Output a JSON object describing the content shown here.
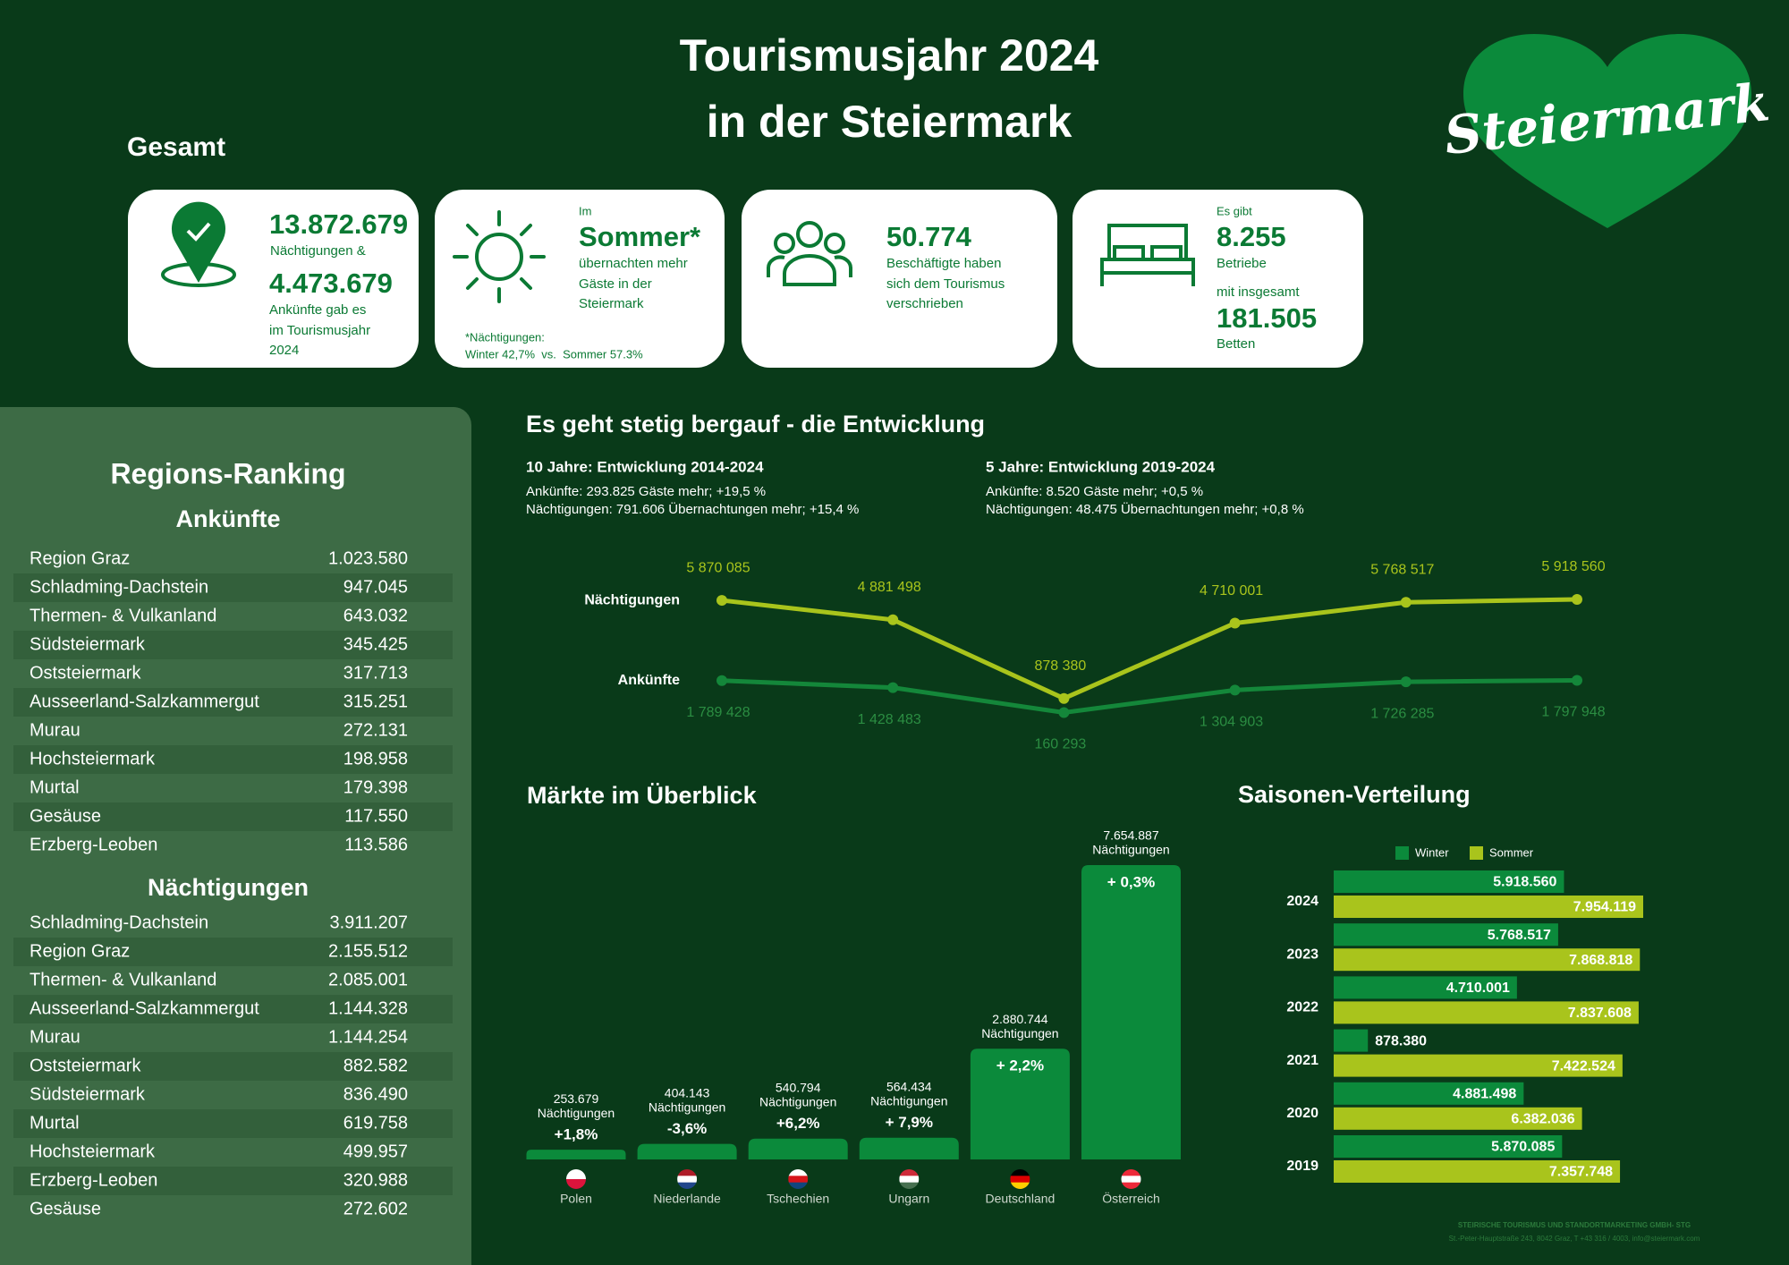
{
  "header": {
    "title_lines": [
      "Tourismusjahr 2024",
      "in der Steiermark"
    ],
    "logo": "Steiermark",
    "section": "Gesamt"
  },
  "cards": [
    {
      "overnights": "13.872.679",
      "overnights_label": "Nächtigungen &",
      "arrivals": "4.473.679",
      "arrivals_label": [
        "Ankünfte gab es",
        "im Tourismusjahr",
        "2024"
      ]
    },
    {
      "intro": "Im",
      "highlight": "Sommer*",
      "text": [
        "übernachten mehr",
        "Gäste in der",
        "Steiermark"
      ],
      "footnote": [
        "*Nächtigungen:",
        "Winter 42,7%  vs.  Sommer 57.3%"
      ]
    },
    {
      "value": "50.774",
      "text": [
        "Beschäftigte haben",
        "sich dem Tourismus",
        "verschrieben"
      ]
    },
    {
      "intro": "Es gibt",
      "businesses": "8.255",
      "businesses_label": "Betriebe",
      "intro2": "mit insgesamt",
      "beds": "181.505",
      "beds_label": "Betten"
    }
  ],
  "ranking": {
    "title": "Regions-Ranking",
    "arrivals": {
      "heading": "Ankünfte",
      "rows": [
        [
          "Region Graz",
          "1.023.580"
        ],
        [
          "Schladming-Dachstein",
          "947.045"
        ],
        [
          "Thermen- & Vulkanland",
          "643.032"
        ],
        [
          "Südsteiermark",
          "345.425"
        ],
        [
          "Oststeiermark",
          "317.713"
        ],
        [
          "Ausseerland-Salzkammergut",
          "315.251"
        ],
        [
          "Murau",
          "272.131"
        ],
        [
          "Hochsteiermark",
          "198.958"
        ],
        [
          "Murtal",
          "179.398"
        ],
        [
          "Gesäuse",
          "117.550"
        ],
        [
          "Erzberg-Leoben",
          "113.586"
        ]
      ]
    },
    "overnights": {
      "heading": "Nächtigungen",
      "rows": [
        [
          "Schladming-Dachstein",
          "3.911.207"
        ],
        [
          "Region Graz",
          "2.155.512"
        ],
        [
          "Thermen- & Vulkanland",
          "2.085.001"
        ],
        [
          "Ausseerland-Salzkammergut",
          "1.144.328"
        ],
        [
          "Murau",
          "1.144.254"
        ],
        [
          "Oststeiermark",
          "882.582"
        ],
        [
          "Südsteiermark",
          "836.490"
        ],
        [
          "Murtal",
          "619.758"
        ],
        [
          "Hochsteiermark",
          "499.957"
        ],
        [
          "Erzberg-Leoben",
          "320.988"
        ],
        [
          "Gesäuse",
          "272.602"
        ]
      ]
    }
  },
  "development": {
    "title": "Es geht stetig bergauf - die Entwicklung",
    "periods": [
      {
        "heading": "10 Jahre: Entwicklung 2014-2024",
        "lines": [
          "Ankünfte: 293.825 Gäste mehr; +19,5 %",
          "Nächtigungen: 791.606 Übernachtungen mehr; +15,4 %"
        ]
      },
      {
        "heading": "5 Jahre: Entwicklung 2019-2024",
        "lines": [
          "Ankünfte: 8.520 Gäste mehr; +0,5 %",
          "Nächtigungen: 48.475 Übernachtungen mehr; +0,8 %"
        ]
      }
    ]
  },
  "chart_data": [
    {
      "type": "line",
      "series": [
        {
          "name": "Nächtigungen",
          "color": "#a9c41c",
          "values": [
            5870085,
            4881498,
            878380,
            4710001,
            5768517,
            5918560
          ],
          "value_labels": [
            "5 870 085",
            "4 881 498",
            "878 380",
            "4 710 001",
            "5 768 517",
            "5 918 560"
          ]
        },
        {
          "name": "Ankünfte",
          "color": "#14873a",
          "values": [
            1789428,
            1428483,
            160293,
            1304903,
            1726285,
            1797948
          ],
          "value_labels": [
            "1 789 428",
            "1 428 483",
            "160 293",
            "1 304 903",
            "1 726 285",
            "1 797 948"
          ]
        }
      ]
    },
    {
      "type": "bar",
      "title": "Märkte im Überblick",
      "categories": [
        "Polen",
        "Niederlande",
        "Tschechien",
        "Ungarn",
        "Deutschland",
        "Österreich"
      ],
      "values": [
        253679,
        404143,
        540794,
        564434,
        2880744,
        7654887
      ],
      "value_labels": [
        "253.679",
        "404.143",
        "540.794",
        "564.434",
        "2.880.744",
        "7.654.887"
      ],
      "unit_label": "Nächtigungen",
      "changes": [
        1.8,
        -3.6,
        6.2,
        7.9,
        2.2,
        0.3
      ],
      "change_labels": [
        "+1,8%",
        "-3,6%",
        "+6,2%",
        "+ 7,9%",
        "+ 2,2%",
        "+ 0,3%"
      ],
      "color": "#0b8a3b"
    },
    {
      "type": "hbar",
      "title": "Saisonen-Verteilung",
      "categories": [
        "2024",
        "2023",
        "2022",
        "2021",
        "2020",
        "2019"
      ],
      "series": [
        {
          "name": "Winter",
          "color": "#0b8a3b",
          "values": [
            5918560,
            5768517,
            4710001,
            878380,
            4881498,
            5870085
          ],
          "value_labels": [
            "5.918.560",
            "5.768.517",
            "4.710.001",
            "878.380",
            "4.881.498",
            "5.870.085"
          ]
        },
        {
          "name": "Sommer",
          "color": "#a9c41c",
          "values": [
            7954119,
            7868818,
            7837608,
            7422524,
            6382036,
            7357748
          ],
          "value_labels": [
            "7.954.119",
            "7.868.818",
            "7.837.608",
            "7.422.524",
            "6.382.036",
            "7.357.748"
          ]
        }
      ]
    }
  ],
  "footer": [
    "STEIRISCHE TOURISMUS UND STANDORTMARKETING GMBH- STG",
    "St.-Peter-Hauptstraße 243, 8042 Graz, T +43 316 / 4003, info@steiermark.com"
  ]
}
